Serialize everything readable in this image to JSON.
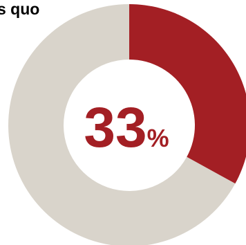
{
  "header": {
    "partial_text": "s quo"
  },
  "chart_data": {
    "type": "pie",
    "donut": true,
    "categories": [
      "",
      ""
    ],
    "values": [
      33,
      67
    ],
    "center_label": {
      "number": "33",
      "unit": "%"
    },
    "colors": {
      "highlight": "#a31f24",
      "remainder": "#d9d4cb",
      "label": "#a31f24"
    }
  }
}
